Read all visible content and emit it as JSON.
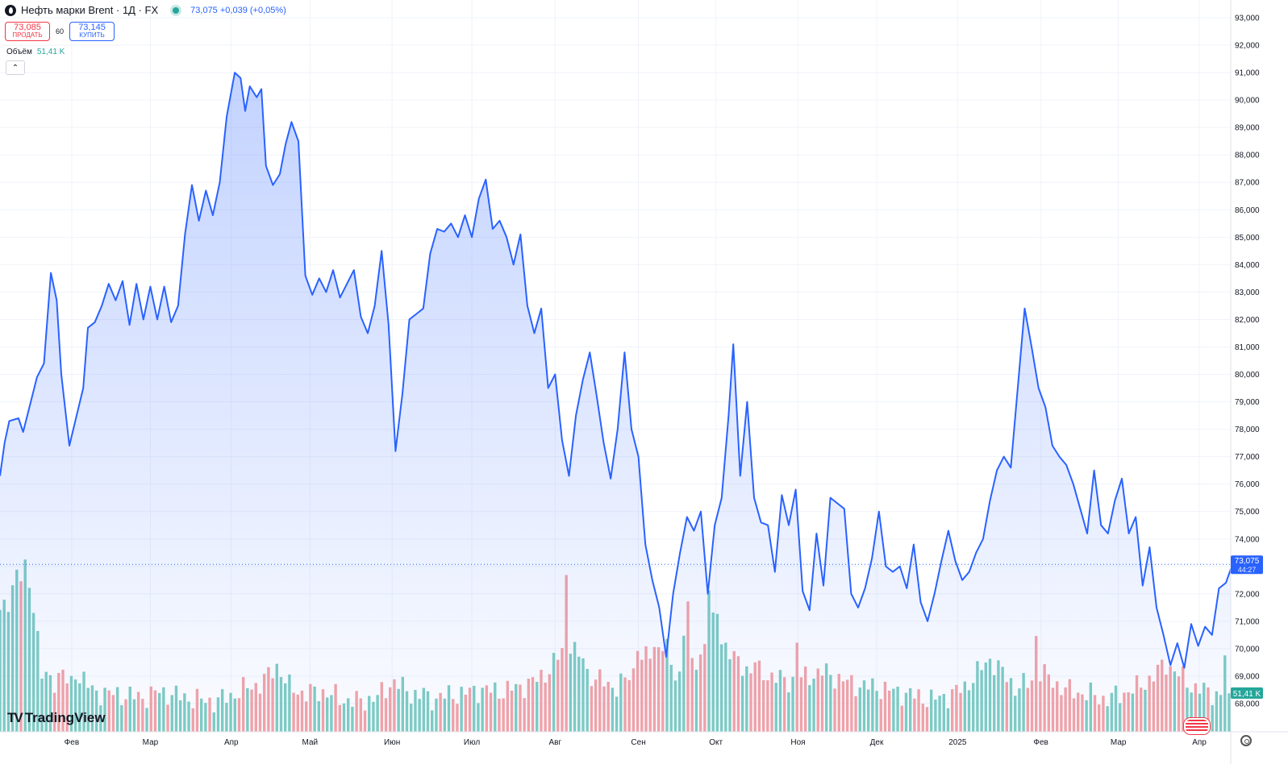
{
  "header": {
    "symbol_title": "Нефть марки Brent · 1Д · FX",
    "quote": "73,075 +0,039 (+0,05%)",
    "sell_price": "73,085",
    "sell_label": "ПРОДАТЬ",
    "spread": "60",
    "buy_price": "73,145",
    "buy_label": "КУПИТЬ",
    "volume_label": "Объём",
    "volume_value": "51,41 K"
  },
  "logo": {
    "text": "TradingView"
  },
  "colors": {
    "line": "#2962ff",
    "area_top": "rgba(41,98,255,0.28)",
    "area_bottom": "rgba(41,98,255,0.02)",
    "vol_up": "#7fcdc3",
    "vol_down": "#f4a4a7",
    "price_badge": "#2962ff",
    "vol_badge": "#26a69a"
  },
  "price_badge": {
    "price": "73,075",
    "timer": "44:27"
  },
  "volume_badge": {
    "value": "51,41 K"
  },
  "chart_data": {
    "type": "area",
    "ylim": [
      67.7,
      93.3
    ],
    "grid": true,
    "y_ticks": [
      68,
      69,
      70,
      71,
      72,
      73,
      74,
      75,
      76,
      77,
      78,
      79,
      80,
      81,
      82,
      83,
      84,
      85,
      86,
      87,
      88,
      89,
      90,
      91,
      92,
      93
    ],
    "y_tick_labels": [
      "68,000",
      "69,000",
      "70,000",
      "71,000",
      "72,000",
      "73,000",
      "74,000",
      "75,000",
      "76,000",
      "77,000",
      "78,000",
      "79,000",
      "80,000",
      "81,000",
      "82,000",
      "83,000",
      "84,000",
      "85,000",
      "86,000",
      "87,000",
      "88,000",
      "89,000",
      "90,000",
      "91,000",
      "92,000",
      "93,000"
    ],
    "x_ticks": [
      {
        "label": "Фев",
        "t": 0.062
      },
      {
        "label": "Мар",
        "t": 0.13
      },
      {
        "label": "Апр",
        "t": 0.2
      },
      {
        "label": "Май",
        "t": 0.268
      },
      {
        "label": "Июн",
        "t": 0.339
      },
      {
        "label": "Июл",
        "t": 0.408
      },
      {
        "label": "Авг",
        "t": 0.48
      },
      {
        "label": "Сен",
        "t": 0.552
      },
      {
        "label": "Окт",
        "t": 0.619
      },
      {
        "label": "Ноя",
        "t": 0.69
      },
      {
        "label": "Дек",
        "t": 0.758
      },
      {
        "label": "2025",
        "t": 0.828
      },
      {
        "label": "Фев",
        "t": 0.9
      },
      {
        "label": "Мар",
        "t": 0.967
      },
      {
        "label": "Апр",
        "t": 1.037
      }
    ],
    "last_value": 73.075,
    "price_keypoints": [
      [
        0.0,
        76.3
      ],
      [
        0.004,
        77.5
      ],
      [
        0.008,
        78.3
      ],
      [
        0.016,
        78.4
      ],
      [
        0.02,
        77.9
      ],
      [
        0.026,
        78.9
      ],
      [
        0.032,
        79.9
      ],
      [
        0.038,
        80.4
      ],
      [
        0.044,
        83.7
      ],
      [
        0.049,
        82.7
      ],
      [
        0.053,
        80.0
      ],
      [
        0.06,
        77.4
      ],
      [
        0.072,
        79.5
      ],
      [
        0.076,
        81.7
      ],
      [
        0.082,
        81.9
      ],
      [
        0.088,
        82.5
      ],
      [
        0.094,
        83.3
      ],
      [
        0.1,
        82.7
      ],
      [
        0.106,
        83.4
      ],
      [
        0.112,
        81.8
      ],
      [
        0.118,
        83.3
      ],
      [
        0.124,
        82.0
      ],
      [
        0.13,
        83.2
      ],
      [
        0.136,
        82.0
      ],
      [
        0.142,
        83.2
      ],
      [
        0.148,
        81.9
      ],
      [
        0.154,
        82.5
      ],
      [
        0.16,
        85.1
      ],
      [
        0.166,
        86.9
      ],
      [
        0.172,
        85.6
      ],
      [
        0.178,
        86.7
      ],
      [
        0.184,
        85.8
      ],
      [
        0.19,
        87.0
      ],
      [
        0.196,
        89.4
      ],
      [
        0.203,
        91.0
      ],
      [
        0.208,
        90.8
      ],
      [
        0.212,
        89.6
      ],
      [
        0.216,
        90.5
      ],
      [
        0.222,
        90.1
      ],
      [
        0.226,
        90.4
      ],
      [
        0.23,
        87.6
      ],
      [
        0.236,
        86.9
      ],
      [
        0.242,
        87.3
      ],
      [
        0.247,
        88.4
      ],
      [
        0.252,
        89.2
      ],
      [
        0.258,
        88.5
      ],
      [
        0.264,
        83.6
      ],
      [
        0.27,
        82.9
      ],
      [
        0.276,
        83.5
      ],
      [
        0.282,
        83.0
      ],
      [
        0.288,
        83.8
      ],
      [
        0.294,
        82.8
      ],
      [
        0.3,
        83.3
      ],
      [
        0.306,
        83.8
      ],
      [
        0.312,
        82.1
      ],
      [
        0.318,
        81.5
      ],
      [
        0.324,
        82.5
      ],
      [
        0.33,
        84.5
      ],
      [
        0.336,
        81.8
      ],
      [
        0.342,
        77.2
      ],
      [
        0.348,
        79.3
      ],
      [
        0.354,
        82.0
      ],
      [
        0.36,
        82.2
      ],
      [
        0.366,
        82.4
      ],
      [
        0.372,
        84.4
      ],
      [
        0.378,
        85.3
      ],
      [
        0.384,
        85.2
      ],
      [
        0.39,
        85.5
      ],
      [
        0.396,
        85.0
      ],
      [
        0.402,
        85.8
      ],
      [
        0.408,
        85.0
      ],
      [
        0.414,
        86.4
      ],
      [
        0.42,
        87.1
      ],
      [
        0.426,
        85.3
      ],
      [
        0.432,
        85.6
      ],
      [
        0.438,
        85.0
      ],
      [
        0.444,
        84.0
      ],
      [
        0.45,
        85.1
      ],
      [
        0.456,
        82.5
      ],
      [
        0.462,
        81.5
      ],
      [
        0.468,
        82.4
      ],
      [
        0.474,
        79.5
      ],
      [
        0.48,
        80.0
      ],
      [
        0.486,
        77.6
      ],
      [
        0.492,
        76.3
      ],
      [
        0.498,
        78.5
      ],
      [
        0.504,
        79.8
      ],
      [
        0.51,
        80.8
      ],
      [
        0.516,
        79.2
      ],
      [
        0.522,
        77.5
      ],
      [
        0.528,
        76.2
      ],
      [
        0.534,
        78.0
      ],
      [
        0.54,
        80.8
      ],
      [
        0.546,
        78.0
      ],
      [
        0.552,
        77.0
      ],
      [
        0.558,
        73.8
      ],
      [
        0.564,
        72.5
      ],
      [
        0.57,
        71.5
      ],
      [
        0.576,
        69.7
      ],
      [
        0.582,
        72.0
      ],
      [
        0.588,
        73.5
      ],
      [
        0.594,
        74.8
      ],
      [
        0.6,
        74.3
      ],
      [
        0.606,
        75.0
      ],
      [
        0.612,
        72.0
      ],
      [
        0.618,
        74.5
      ],
      [
        0.624,
        75.5
      ],
      [
        0.63,
        78.5
      ],
      [
        0.634,
        81.1
      ],
      [
        0.64,
        76.3
      ],
      [
        0.646,
        79.0
      ],
      [
        0.652,
        75.5
      ],
      [
        0.658,
        74.6
      ],
      [
        0.664,
        74.5
      ],
      [
        0.67,
        72.8
      ],
      [
        0.676,
        75.6
      ],
      [
        0.682,
        74.5
      ],
      [
        0.688,
        75.8
      ],
      [
        0.694,
        72.1
      ],
      [
        0.7,
        71.4
      ],
      [
        0.706,
        74.2
      ],
      [
        0.712,
        72.3
      ],
      [
        0.718,
        75.5
      ],
      [
        0.724,
        75.3
      ],
      [
        0.73,
        75.1
      ],
      [
        0.736,
        72.0
      ],
      [
        0.742,
        71.5
      ],
      [
        0.748,
        72.2
      ],
      [
        0.754,
        73.3
      ],
      [
        0.76,
        75.0
      ],
      [
        0.766,
        73.0
      ],
      [
        0.772,
        72.8
      ],
      [
        0.778,
        73.0
      ],
      [
        0.784,
        72.2
      ],
      [
        0.79,
        73.8
      ],
      [
        0.796,
        71.7
      ],
      [
        0.802,
        71.0
      ],
      [
        0.808,
        72.0
      ],
      [
        0.814,
        73.2
      ],
      [
        0.82,
        74.3
      ],
      [
        0.826,
        73.2
      ],
      [
        0.832,
        72.5
      ],
      [
        0.838,
        72.8
      ],
      [
        0.844,
        73.5
      ],
      [
        0.85,
        74.0
      ],
      [
        0.856,
        75.4
      ],
      [
        0.862,
        76.5
      ],
      [
        0.868,
        77.0
      ],
      [
        0.874,
        76.6
      ],
      [
        0.88,
        79.5
      ],
      [
        0.886,
        82.4
      ],
      [
        0.892,
        81.0
      ],
      [
        0.898,
        79.5
      ],
      [
        0.904,
        78.8
      ],
      [
        0.91,
        77.4
      ],
      [
        0.916,
        77.0
      ],
      [
        0.922,
        76.7
      ],
      [
        0.928,
        76.0
      ],
      [
        0.934,
        75.1
      ],
      [
        0.94,
        74.2
      ],
      [
        0.946,
        76.5
      ],
      [
        0.952,
        74.5
      ],
      [
        0.958,
        74.2
      ],
      [
        0.964,
        75.4
      ],
      [
        0.97,
        76.2
      ],
      [
        0.976,
        74.2
      ],
      [
        0.982,
        74.8
      ],
      [
        0.988,
        72.3
      ],
      [
        0.994,
        73.7
      ],
      [
        1.0,
        71.5
      ],
      [
        1.006,
        70.5
      ],
      [
        1.012,
        69.4
      ],
      [
        1.018,
        70.2
      ],
      [
        1.024,
        69.3
      ],
      [
        1.03,
        70.9
      ],
      [
        1.036,
        70.1
      ],
      [
        1.042,
        70.8
      ],
      [
        1.048,
        70.5
      ],
      [
        1.054,
        72.2
      ],
      [
        1.06,
        72.4
      ],
      [
        1.065,
        73.0
      ],
      [
        1.07,
        73.075
      ]
    ],
    "volume_keypoints": [
      [
        0.0,
        0.58
      ],
      [
        0.008,
        0.66
      ],
      [
        0.014,
        0.8
      ],
      [
        0.022,
        0.72
      ],
      [
        0.03,
        0.62
      ],
      [
        0.036,
        0.28
      ],
      [
        0.046,
        0.25
      ],
      [
        0.054,
        0.3
      ],
      [
        0.06,
        0.22
      ],
      [
        0.07,
        0.28
      ],
      [
        0.08,
        0.2
      ],
      [
        0.094,
        0.19
      ],
      [
        0.11,
        0.18
      ],
      [
        0.124,
        0.17
      ],
      [
        0.138,
        0.2
      ],
      [
        0.152,
        0.18
      ],
      [
        0.17,
        0.16
      ],
      [
        0.186,
        0.15
      ],
      [
        0.2,
        0.18
      ],
      [
        0.214,
        0.22
      ],
      [
        0.226,
        0.24
      ],
      [
        0.24,
        0.33
      ],
      [
        0.25,
        0.22
      ],
      [
        0.264,
        0.19
      ],
      [
        0.28,
        0.2
      ],
      [
        0.296,
        0.16
      ],
      [
        0.31,
        0.15
      ],
      [
        0.326,
        0.17
      ],
      [
        0.34,
        0.25
      ],
      [
        0.356,
        0.19
      ],
      [
        0.37,
        0.16
      ],
      [
        0.386,
        0.18
      ],
      [
        0.4,
        0.19
      ],
      [
        0.416,
        0.21
      ],
      [
        0.432,
        0.2
      ],
      [
        0.448,
        0.22
      ],
      [
        0.462,
        0.25
      ],
      [
        0.474,
        0.3
      ],
      [
        0.486,
        0.4
      ],
      [
        0.494,
        0.45
      ],
      [
        0.504,
        0.3
      ],
      [
        0.52,
        0.25
      ],
      [
        0.534,
        0.22
      ],
      [
        0.548,
        0.3
      ],
      [
        0.56,
        0.38
      ],
      [
        0.572,
        0.45
      ],
      [
        0.584,
        0.28
      ],
      [
        0.596,
        0.3
      ],
      [
        0.606,
        0.38
      ],
      [
        0.614,
        0.55
      ],
      [
        0.622,
        0.48
      ],
      [
        0.636,
        0.35
      ],
      [
        0.65,
        0.3
      ],
      [
        0.666,
        0.28
      ],
      [
        0.68,
        0.25
      ],
      [
        0.696,
        0.27
      ],
      [
        0.712,
        0.3
      ],
      [
        0.726,
        0.26
      ],
      [
        0.742,
        0.23
      ],
      [
        0.758,
        0.22
      ],
      [
        0.774,
        0.2
      ],
      [
        0.79,
        0.18
      ],
      [
        0.806,
        0.16
      ],
      [
        0.82,
        0.18
      ],
      [
        0.834,
        0.22
      ],
      [
        0.846,
        0.3
      ],
      [
        0.856,
        0.36
      ],
      [
        0.866,
        0.3
      ],
      [
        0.878,
        0.22
      ],
      [
        0.89,
        0.24
      ],
      [
        0.9,
        0.3
      ],
      [
        0.912,
        0.24
      ],
      [
        0.926,
        0.2
      ],
      [
        0.94,
        0.19
      ],
      [
        0.956,
        0.16
      ],
      [
        0.97,
        0.19
      ],
      [
        0.984,
        0.22
      ],
      [
        0.996,
        0.27
      ],
      [
        1.008,
        0.34
      ],
      [
        1.02,
        0.28
      ],
      [
        1.032,
        0.22
      ],
      [
        1.044,
        0.2
      ],
      [
        1.056,
        0.18
      ],
      [
        1.066,
        0.12
      ]
    ],
    "volume_spikes": [
      [
        0.022,
        0.8
      ],
      [
        0.026,
        0.74
      ],
      [
        0.066,
        0.3
      ],
      [
        0.296,
        0.16
      ],
      [
        0.366,
        0.2
      ],
      [
        0.49,
        0.78
      ],
      [
        0.504,
        0.38
      ],
      [
        0.552,
        0.45
      ],
      [
        0.576,
        0.4
      ],
      [
        0.59,
        0.52
      ],
      [
        0.596,
        0.62
      ],
      [
        0.612,
        0.72
      ],
      [
        0.62,
        0.6
      ],
      [
        0.652,
        0.35
      ],
      [
        0.688,
        0.45
      ],
      [
        0.896,
        0.48
      ],
      [
        1.002,
        0.3
      ],
      [
        1.06,
        0.38
      ]
    ]
  }
}
